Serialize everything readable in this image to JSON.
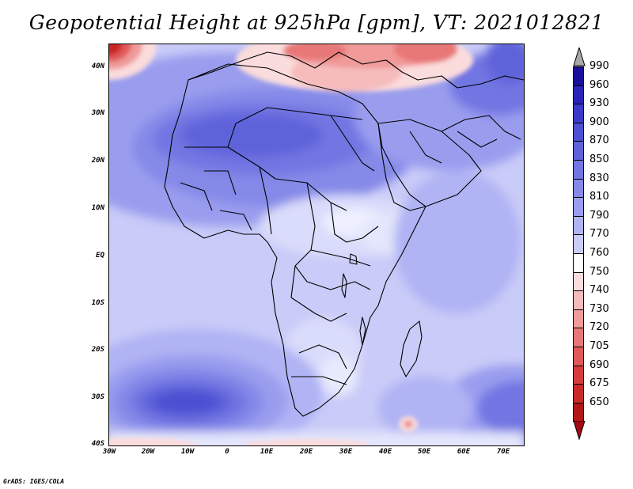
{
  "title": "Geopotential Height at 925hPa [gpm], VT: 2021012821",
  "credit": "GrADS: IGES/COLA",
  "map": {
    "lon_range": [
      -30,
      75
    ],
    "lat_range": [
      -40,
      45
    ],
    "y_ticks": [
      "40N",
      "30N",
      "20N",
      "10N",
      "EQ",
      "10S",
      "20S",
      "30S",
      "40S"
    ],
    "x_ticks": [
      "30W",
      "20W",
      "10W",
      "0",
      "10E",
      "20E",
      "30E",
      "40E",
      "50E",
      "60E",
      "70E"
    ]
  },
  "colorbar": {
    "levels": [
      "990",
      "960",
      "930",
      "900",
      "870",
      "850",
      "830",
      "810",
      "790",
      "770",
      "760",
      "750",
      "740",
      "730",
      "720",
      "705",
      "690",
      "675",
      "650"
    ],
    "colors": [
      "#1a0f9a",
      "#2a23b8",
      "#3a3ac8",
      "#4b4fd2",
      "#5e63da",
      "#7276e2",
      "#8589e8",
      "#9a9dee",
      "#b0b3f4",
      "#c9cbf8",
      "#ffffff",
      "#fbdcdc",
      "#f6bcbc",
      "#f09a9a",
      "#e87878",
      "#e05858",
      "#d63c3c",
      "#c92828",
      "#b31616"
    ],
    "over_color": "#a8a8a8",
    "under_color": "#a30a14"
  }
}
